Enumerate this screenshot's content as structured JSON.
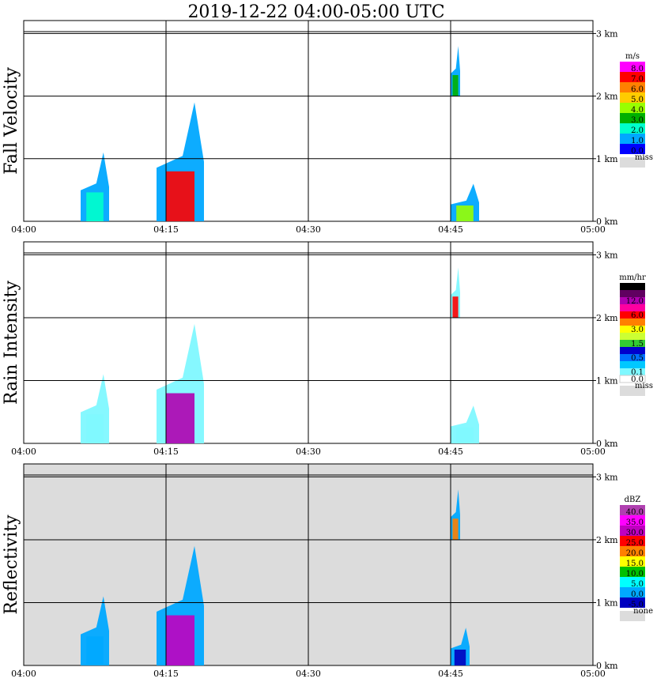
{
  "title": "2019-12-22   04:00-05:00 UTC",
  "colors": {
    "grid": "#000000",
    "missing_bg": "#dcdcdc",
    "none_bg": "#dcdcdc"
  },
  "chart_data": [
    {
      "type": "heatmap",
      "title": "Fall Velocity",
      "x_ticks": [
        "04:00",
        "04:15",
        "04:30",
        "04:45",
        "05:00"
      ],
      "y_ticks": [
        "0 km",
        "1 km",
        "2 km",
        "3 km"
      ],
      "ylim_km": [
        0,
        3
      ],
      "grid": true,
      "legend_placement": "right",
      "legend_unit": "m/s",
      "legend": [
        {
          "label": "8.0",
          "color": "#ff00ff"
        },
        {
          "label": "7.0",
          "color": "#ff0000"
        },
        {
          "label": "6.0",
          "color": "#ff8000"
        },
        {
          "label": "5.0",
          "color": "#ffcc00"
        },
        {
          "label": "4.0",
          "color": "#99ff00"
        },
        {
          "label": "3.0",
          "color": "#00b000"
        },
        {
          "label": "2.0",
          "color": "#00ffcc"
        },
        {
          "label": "1.0",
          "color": "#00a8ff"
        },
        {
          "label": "0.0",
          "color": "#0000ff"
        }
      ],
      "missing_label": "miss",
      "background": "white",
      "events": [
        {
          "t_start": "04:06",
          "t_end": "04:09",
          "top_km": 1.1,
          "peak": "2.0"
        },
        {
          "t_start": "04:14",
          "t_end": "04:19",
          "top_km": 1.9,
          "peak": "7.0"
        },
        {
          "t_start": "04:45",
          "t_end": "04:46",
          "base_km": 2.0,
          "top_km": 2.8,
          "peak": "3.0"
        },
        {
          "t_start": "04:45",
          "t_end": "04:48",
          "top_km": 0.6,
          "peak": "4.0"
        }
      ]
    },
    {
      "type": "heatmap",
      "title": "Rain Intensity",
      "x_ticks": [
        "04:00",
        "04:15",
        "04:30",
        "04:45",
        "05:00"
      ],
      "y_ticks": [
        "0 km",
        "1 km",
        "2 km",
        "3 km"
      ],
      "ylim_km": [
        0,
        3
      ],
      "grid": true,
      "legend_placement": "right",
      "legend_unit": "mm/hr",
      "legend": [
        {
          "label": "48.0",
          "color": "#000000"
        },
        {
          "label": "",
          "color": "#600060"
        },
        {
          "label": "12.0",
          "color": "#b000b0"
        },
        {
          "label": "",
          "color": "#ff00a0"
        },
        {
          "label": "6.0",
          "color": "#ff0000"
        },
        {
          "label": "",
          "color": "#ff8000"
        },
        {
          "label": "3.0",
          "color": "#ffff00"
        },
        {
          "label": "",
          "color": "#ccff33"
        },
        {
          "label": "1.5",
          "color": "#33cc33"
        },
        {
          "label": "",
          "color": "#0000cc"
        },
        {
          "label": "0.5",
          "color": "#0070ff"
        },
        {
          "label": "",
          "color": "#00c8ff"
        },
        {
          "label": "0.1",
          "color": "#7ff8ff"
        },
        {
          "label": "0.0",
          "color": "#ffffff"
        }
      ],
      "missing_label": "miss",
      "background": "white",
      "events": [
        {
          "t_start": "04:06",
          "t_end": "04:09",
          "top_km": 1.1,
          "peak": "0.1"
        },
        {
          "t_start": "04:14",
          "t_end": "04:19",
          "top_km": 1.9,
          "peak": "12.0"
        },
        {
          "t_start": "04:45",
          "t_end": "04:46",
          "base_km": 2.0,
          "top_km": 2.8,
          "peak": "6.0"
        },
        {
          "t_start": "04:45",
          "t_end": "04:48",
          "top_km": 0.6,
          "peak": "0.1"
        }
      ]
    },
    {
      "type": "heatmap",
      "title": "Reflectivity",
      "x_ticks": [
        "04:00",
        "04:15",
        "04:30",
        "04:45",
        "05:00"
      ],
      "y_ticks": [
        "0 km",
        "1 km",
        "2 km",
        "3 km"
      ],
      "ylim_km": [
        0,
        3
      ],
      "grid": true,
      "legend_placement": "right",
      "legend_unit": "dBZ",
      "legend": [
        {
          "label": "40.0",
          "color": "#b040b0"
        },
        {
          "label": "35.0",
          "color": "#ff00ff"
        },
        {
          "label": "30.0",
          "color": "#c000c0"
        },
        {
          "label": "25.0",
          "color": "#ff0000"
        },
        {
          "label": "20.0",
          "color": "#ff8000"
        },
        {
          "label": "15.0",
          "color": "#ffff00"
        },
        {
          "label": "10.0",
          "color": "#00c000"
        },
        {
          "label": "5.0",
          "color": "#00ffff"
        },
        {
          "label": "0.0",
          "color": "#00a8ff"
        },
        {
          "label": "-5.0",
          "color": "#0000c0"
        }
      ],
      "missing_label": "none",
      "background": "gray",
      "events": [
        {
          "t_start": "04:06",
          "t_end": "04:09",
          "top_km": 1.1,
          "peak": "0.0"
        },
        {
          "t_start": "04:14",
          "t_end": "04:19",
          "top_km": 1.9,
          "peak": "30.0"
        },
        {
          "t_start": "04:45",
          "t_end": "04:46",
          "base_km": 2.0,
          "top_km": 2.8,
          "peak": "20.0"
        },
        {
          "t_start": "04:45",
          "t_end": "04:47",
          "top_km": 0.6,
          "peak": "-5.0"
        }
      ]
    }
  ]
}
